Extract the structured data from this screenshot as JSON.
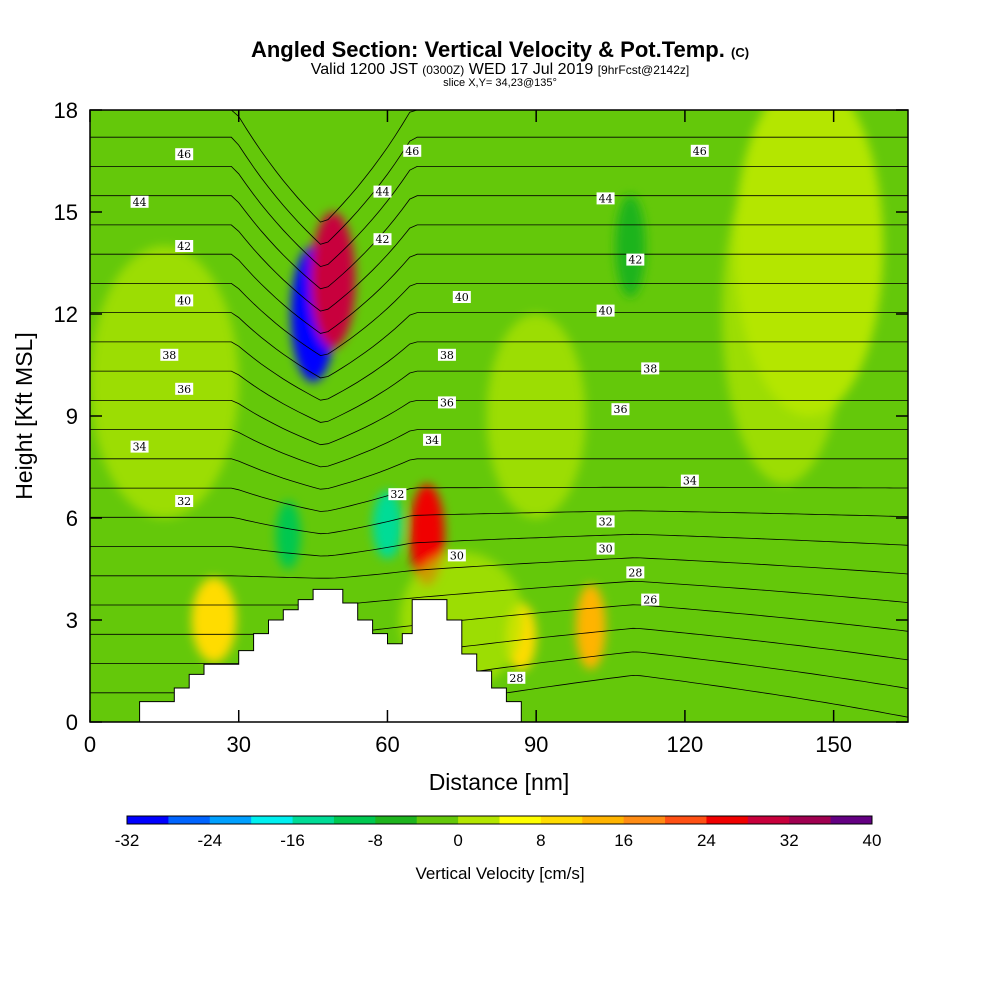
{
  "header": {
    "title_main": "Angled Section: Vertical Velocity & Pot.Temp.",
    "title_tag": "(C)",
    "valid_a": "Valid 1200 JST",
    "valid_utc": "(0300Z)",
    "valid_b": "WED 17 Jul 2019",
    "valid_fcst": "[9hrFcst@2142z]",
    "slice": "slice X,Y= 34,23@135°"
  },
  "chart_data": {
    "type": "heatmap",
    "xlabel": "Distance [nm]",
    "ylabel": "Height [Kft MSL]",
    "xlim": [
      0,
      165
    ],
    "ylim": [
      0,
      18
    ],
    "xticks": [
      "0",
      "30",
      "60",
      "90",
      "120",
      "150"
    ],
    "yticks": [
      "0",
      "3",
      "6",
      "9",
      "12",
      "15",
      "18"
    ],
    "colorbar": {
      "label": "Vertical Velocity [cm/s]",
      "ticks": [
        "-32",
        "-24",
        "-16",
        "-8",
        "0",
        "8",
        "16",
        "24",
        "32",
        "40"
      ],
      "colors": [
        "#0000ff",
        "#0064ff",
        "#00a0ff",
        "#00f0f0",
        "#00dc96",
        "#00c850",
        "#1eb41e",
        "#64c80a",
        "#b4e600",
        "#ffff00",
        "#ffdc00",
        "#ffb400",
        "#ff8c14",
        "#ff5014",
        "#f00000",
        "#c8003c",
        "#a00050",
        "#640082"
      ]
    },
    "theta_contours": {
      "unit": "C",
      "labels": [
        {
          "value": "46",
          "x": 19,
          "y": 16.7
        },
        {
          "value": "46",
          "x": 65,
          "y": 16.8
        },
        {
          "value": "46",
          "x": 123,
          "y": 16.8
        },
        {
          "value": "44",
          "x": 10,
          "y": 15.3
        },
        {
          "value": "44",
          "x": 59,
          "y": 15.6
        },
        {
          "value": "44",
          "x": 104,
          "y": 15.4
        },
        {
          "value": "42",
          "x": 19,
          "y": 14.0
        },
        {
          "value": "42",
          "x": 59,
          "y": 14.2
        },
        {
          "value": "42",
          "x": 110,
          "y": 13.6
        },
        {
          "value": "40",
          "x": 19,
          "y": 12.4
        },
        {
          "value": "40",
          "x": 75,
          "y": 12.5
        },
        {
          "value": "40",
          "x": 104,
          "y": 12.1
        },
        {
          "value": "38",
          "x": 16,
          "y": 10.8
        },
        {
          "value": "38",
          "x": 72,
          "y": 10.8
        },
        {
          "value": "38",
          "x": 113,
          "y": 10.4
        },
        {
          "value": "36",
          "x": 19,
          "y": 9.8
        },
        {
          "value": "36",
          "x": 72,
          "y": 9.4
        },
        {
          "value": "36",
          "x": 107,
          "y": 9.2
        },
        {
          "value": "34",
          "x": 10,
          "y": 8.1
        },
        {
          "value": "34",
          "x": 69,
          "y": 8.3
        },
        {
          "value": "34",
          "x": 121,
          "y": 7.1
        },
        {
          "value": "32",
          "x": 19,
          "y": 6.5
        },
        {
          "value": "32",
          "x": 62,
          "y": 6.7
        },
        {
          "value": "32",
          "x": 104,
          "y": 5.9
        },
        {
          "value": "30",
          "x": 74,
          "y": 4.9
        },
        {
          "value": "30",
          "x": 104,
          "y": 5.1
        },
        {
          "value": "28",
          "x": 110,
          "y": 4.4
        },
        {
          "value": "26",
          "x": 113,
          "y": 3.6
        },
        {
          "value": "28",
          "x": 86,
          "y": 1.3
        }
      ]
    },
    "vertical_velocity_cells": [
      {
        "x": 45,
        "y": 12,
        "w_cm_s": -30
      },
      {
        "x": 49,
        "y": 13,
        "w_cm_s": 30
      },
      {
        "x": 68,
        "y": 5.5,
        "w_cm_s": 24
      },
      {
        "x": 60,
        "y": 5.8,
        "w_cm_s": -14
      },
      {
        "x": 40,
        "y": 5.5,
        "w_cm_s": -12
      },
      {
        "x": 25,
        "y": 3,
        "w_cm_s": 10
      },
      {
        "x": 101,
        "y": 2.8,
        "w_cm_s": 14
      },
      {
        "x": 87,
        "y": 2.5,
        "w_cm_s": 8
      },
      {
        "x": 109,
        "y": 14,
        "w_cm_s": -8
      },
      {
        "x": 145,
        "y": 14,
        "w_cm_s": 2
      }
    ],
    "terrain_profile_kft": [
      [
        0,
        0
      ],
      [
        10,
        0
      ],
      [
        10,
        0.6
      ],
      [
        17,
        0.6
      ],
      [
        17,
        1
      ],
      [
        20,
        1
      ],
      [
        20,
        1.4
      ],
      [
        23,
        1.4
      ],
      [
        23,
        1.7
      ],
      [
        30,
        1.7
      ],
      [
        30,
        2.1
      ],
      [
        33,
        2.1
      ],
      [
        33,
        2.6
      ],
      [
        36,
        2.6
      ],
      [
        36,
        3.0
      ],
      [
        39,
        3.0
      ],
      [
        39,
        3.3
      ],
      [
        42,
        3.3
      ],
      [
        42,
        3.6
      ],
      [
        45,
        3.6
      ],
      [
        45,
        3.9
      ],
      [
        51,
        3.9
      ],
      [
        51,
        3.5
      ],
      [
        54,
        3.5
      ],
      [
        54,
        3.0
      ],
      [
        57,
        3.0
      ],
      [
        57,
        2.6
      ],
      [
        60,
        2.6
      ],
      [
        60,
        2.3
      ],
      [
        63,
        2.3
      ],
      [
        63,
        2.6
      ],
      [
        65,
        2.6
      ],
      [
        65,
        3.6
      ],
      [
        72,
        3.6
      ],
      [
        72,
        3.0
      ],
      [
        75,
        3.0
      ],
      [
        75,
        2.0
      ],
      [
        78,
        2.0
      ],
      [
        78,
        1.5
      ],
      [
        81,
        1.5
      ],
      [
        81,
        1.0
      ],
      [
        84,
        1.0
      ],
      [
        84,
        0.6
      ],
      [
        87,
        0.6
      ],
      [
        87,
        0
      ],
      [
        0,
        0
      ]
    ]
  }
}
